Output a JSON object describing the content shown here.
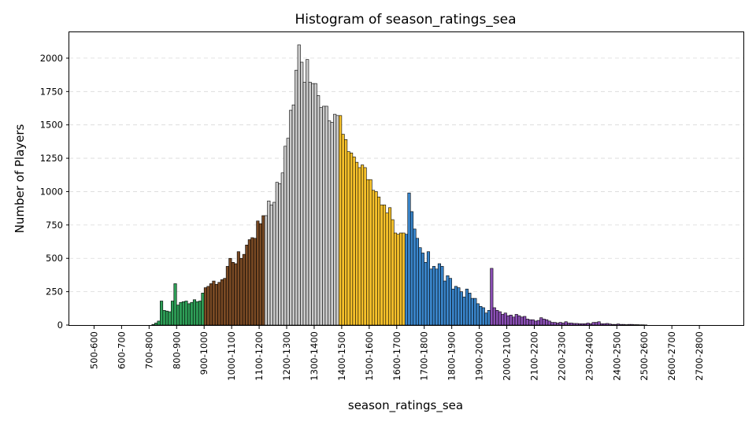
{
  "chart_data": {
    "type": "bar",
    "title": "Histogram of season_ratings_sea",
    "xlabel": "season_ratings_sea",
    "ylabel": "Number of Players",
    "grid": "y",
    "xlim": [
      460,
      2910
    ],
    "ylim": [
      0,
      2200
    ],
    "yticks": [
      0,
      250,
      500,
      750,
      1000,
      1250,
      1500,
      1750,
      2000
    ],
    "tick_categories": [
      "500-600",
      "600-700",
      "700-800",
      "800-900",
      "900-1000",
      "1000-1100",
      "1100-1200",
      "1200-1300",
      "1300-1400",
      "1400-1500",
      "1500-1600",
      "1600-1700",
      "1700-1800",
      "1800-1900",
      "1900-2000",
      "2000-2100",
      "2100-2200",
      "2200-2300",
      "2300-2400",
      "2400-2500",
      "2500-2600",
      "2600-2700",
      "2700-2800"
    ],
    "bin_width": 10,
    "segments": [
      {
        "start": 760,
        "color": "#2e9e57",
        "values": [
          5,
          15,
          30,
          180,
          110,
          105,
          100,
          180,
          310,
          150,
          170,
          175,
          180,
          160,
          170,
          190,
          175,
          180,
          240
        ]
      },
      {
        "start": 950,
        "color": "#7a4a24",
        "values": [
          280,
          290,
          310,
          330,
          305,
          320,
          340,
          350,
          440,
          500,
          470,
          460,
          550,
          500,
          530,
          600,
          640,
          655,
          650,
          780,
          760,
          820
        ]
      },
      {
        "start": 1170,
        "color": "#cccccc",
        "values": [
          820,
          930,
          900,
          920,
          1070,
          1060,
          1140,
          1340,
          1400,
          1610,
          1650,
          1910,
          2100,
          1970,
          1820,
          1990,
          1820,
          1810,
          1810,
          1720,
          1630,
          1640,
          1640,
          1530,
          1520,
          1580,
          1570
        ]
      },
      {
        "start": 1440,
        "color": "#f5c02a",
        "values": [
          1570,
          1430,
          1390,
          1300,
          1290,
          1260,
          1220,
          1180,
          1200,
          1180,
          1090,
          1090,
          1010,
          1000,
          960,
          900,
          900,
          840,
          880,
          790,
          690,
          680,
          690,
          690
        ]
      },
      {
        "start": 1680,
        "color": "#3a86cc",
        "values": [
          680,
          990,
          850,
          720,
          650,
          580,
          540,
          470,
          550,
          420,
          440,
          420,
          460,
          440,
          330,
          370,
          350,
          270,
          290,
          280,
          250,
          210,
          270,
          240,
          200,
          200,
          160,
          140,
          130,
          90,
          110
        ]
      },
      {
        "start": 1990,
        "color": "#8b4fb5",
        "values": [
          425,
          130,
          110,
          100,
          80,
          90,
          70,
          75,
          60,
          80,
          70,
          60,
          65,
          45,
          40,
          40,
          30,
          35,
          55,
          45,
          40,
          30,
          20,
          20,
          15,
          20,
          15,
          25,
          15,
          15,
          12,
          12,
          10,
          10,
          10,
          15,
          10,
          20,
          20,
          25,
          10,
          10,
          12,
          8,
          5,
          5,
          8,
          5,
          5,
          3,
          5,
          5,
          3,
          3,
          2,
          2,
          1
        ]
      }
    ]
  }
}
